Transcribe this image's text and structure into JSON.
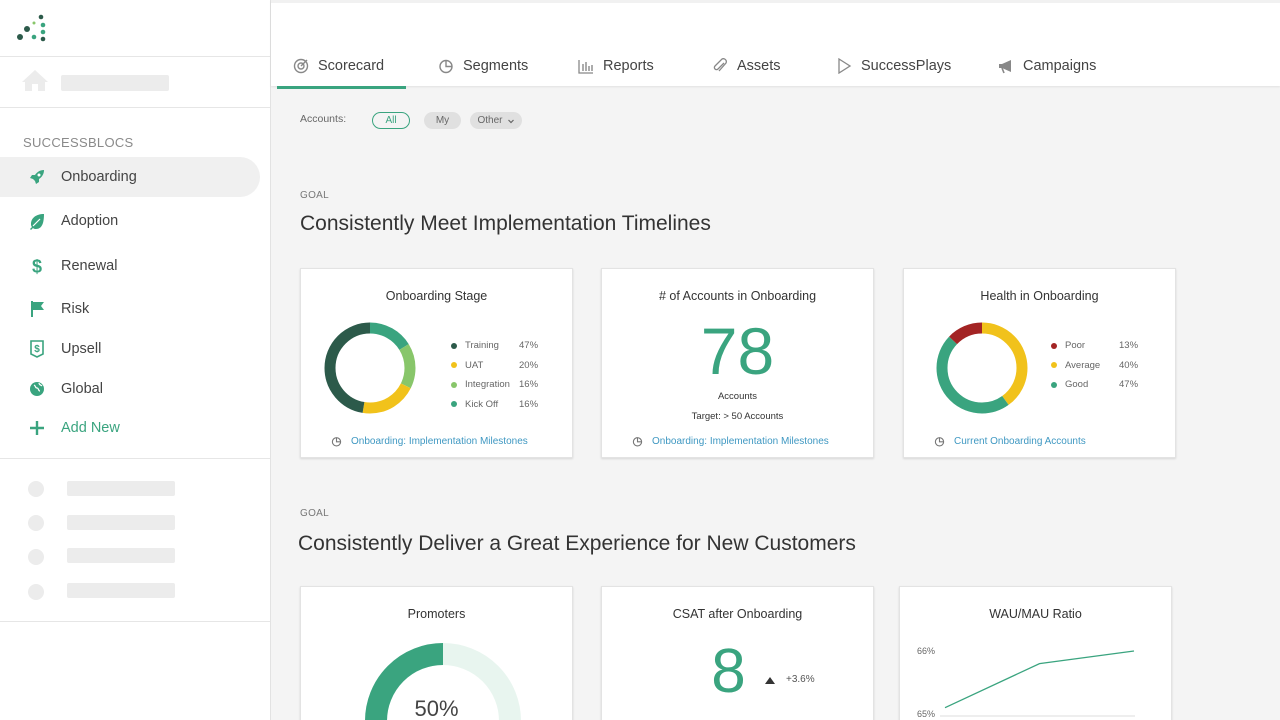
{
  "colors": {
    "accent": "#3aa47f",
    "link": "#3f98c2"
  },
  "sidebar": {
    "section_title": "SUCCESSBLOCS",
    "items": [
      {
        "label": "Onboarding",
        "icon": "rocket-icon"
      },
      {
        "label": "Adoption",
        "icon": "leaf-icon"
      },
      {
        "label": "Renewal",
        "icon": "dollar-icon"
      },
      {
        "label": "Risk",
        "icon": "flag-icon"
      },
      {
        "label": "Upsell",
        "icon": "money-tag-icon"
      },
      {
        "label": "Global",
        "icon": "globe-icon"
      }
    ],
    "add_new": "Add New"
  },
  "tabs": [
    {
      "label": "Scorecard",
      "icon": "scorecard-icon"
    },
    {
      "label": "Segments",
      "icon": "pie-icon"
    },
    {
      "label": "Reports",
      "icon": "bar-chart-icon"
    },
    {
      "label": "Assets",
      "icon": "paperclip-icon"
    },
    {
      "label": "SuccessPlays",
      "icon": "play-icon"
    },
    {
      "label": "Campaigns",
      "icon": "megaphone-icon"
    }
  ],
  "filters": {
    "label": "Accounts:",
    "options": [
      "All",
      "My",
      "Other"
    ],
    "selected": "All"
  },
  "goals": [
    {
      "label": "GOAL",
      "title": "Consistently Meet Implementation Timelines",
      "cards": [
        {
          "title": "Onboarding Stage",
          "legend": [
            {
              "name": "Training",
              "pct": "47%",
              "color": "#2c5a4a"
            },
            {
              "name": "UAT",
              "pct": "20%",
              "color": "#f1c21b"
            },
            {
              "name": "Integration",
              "pct": "16%",
              "color": "#88c66a"
            },
            {
              "name": "Kick Off",
              "pct": "16%",
              "color": "#3aa47f"
            }
          ],
          "link": "Onboarding: Implementation Milestones"
        },
        {
          "title": "# of Accounts in Onboarding",
          "value": "78",
          "caption": "Accounts",
          "target": "Target: > 50 Accounts",
          "link": "Onboarding: Implementation Milestones"
        },
        {
          "title": "Health in Onboarding",
          "legend": [
            {
              "name": "Poor",
              "pct": "13%",
              "color": "#a32424"
            },
            {
              "name": "Average",
              "pct": "40%",
              "color": "#f1c21b"
            },
            {
              "name": "Good",
              "pct": "47%",
              "color": "#3aa47f"
            }
          ],
          "link": "Current Onboarding Accounts"
        }
      ]
    },
    {
      "label": "GOAL",
      "title": "Consistently Deliver a Great Experience for New Customers",
      "cards": [
        {
          "title": "Promoters",
          "value": "50%",
          "fraction": 0.5
        },
        {
          "title": "CSAT after Onboarding",
          "value": "8",
          "change": "+3.6%"
        },
        {
          "title": "WAU/MAU Ratio",
          "y_labels": [
            "66%",
            "65%"
          ]
        }
      ]
    }
  ],
  "chart_data": [
    {
      "type": "pie",
      "title": "Onboarding Stage",
      "categories": [
        "Training",
        "UAT",
        "Integration",
        "Kick Off"
      ],
      "values": [
        47,
        20,
        16,
        16
      ],
      "colors": [
        "#2c5a4a",
        "#f1c21b",
        "#88c66a",
        "#3aa47f"
      ],
      "order": [
        "Kick Off",
        "Integration",
        "UAT",
        "Training"
      ]
    },
    {
      "type": "pie",
      "title": "Health in Onboarding",
      "categories": [
        "Poor",
        "Average",
        "Good"
      ],
      "values": [
        13,
        40,
        47
      ],
      "colors": [
        "#a32424",
        "#f1c21b",
        "#3aa47f"
      ],
      "order": [
        "Average",
        "Good",
        "Poor"
      ]
    },
    {
      "type": "line",
      "title": "WAU/MAU Ratio",
      "x": [
        0,
        1,
        2
      ],
      "y": [
        65.1,
        65.8,
        66.0
      ],
      "ylim": [
        65,
        66
      ]
    }
  ]
}
